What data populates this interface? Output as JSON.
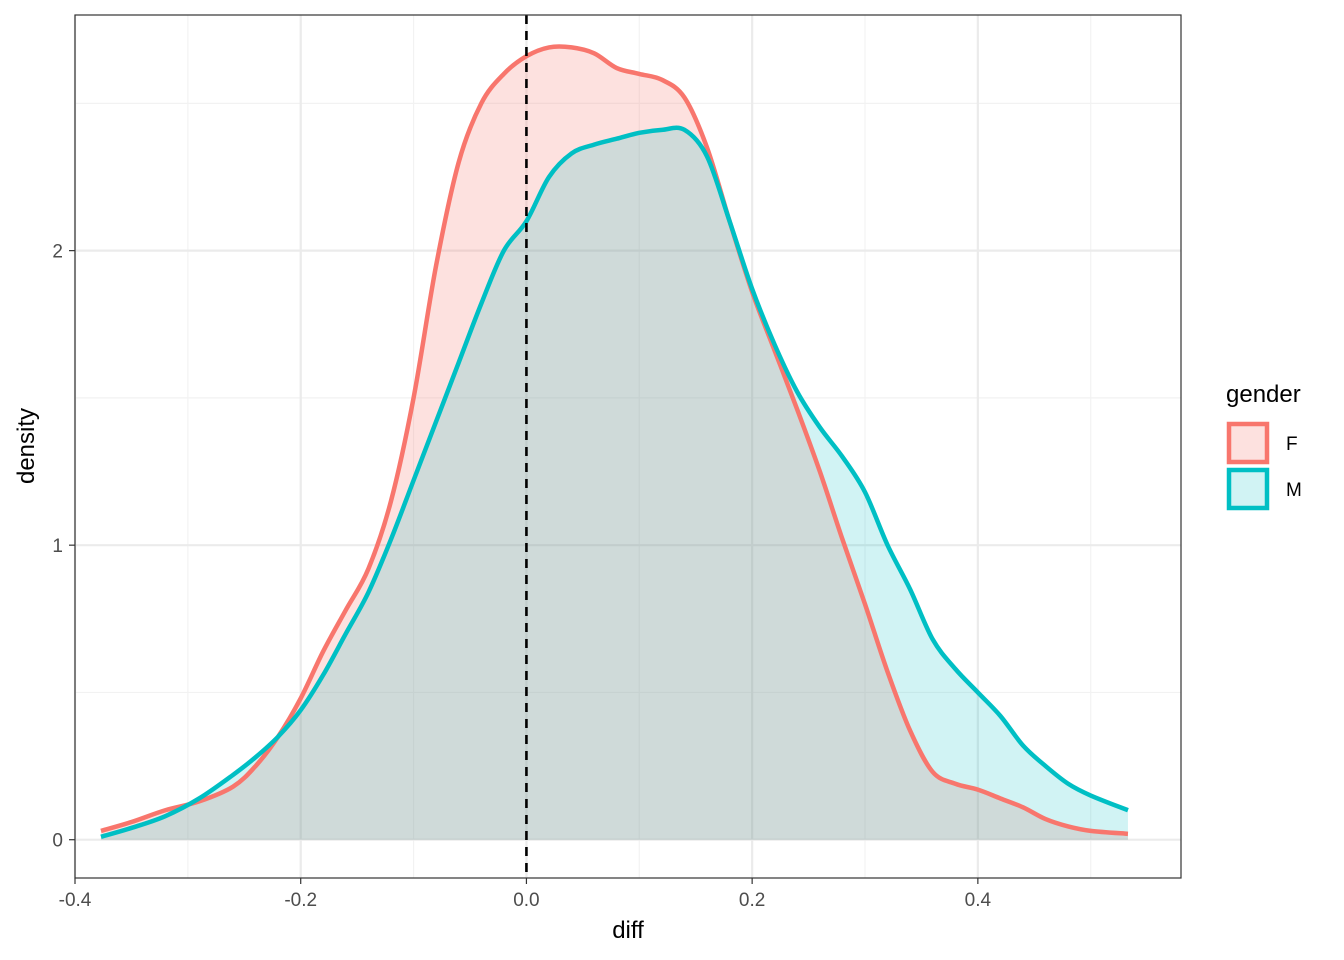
{
  "chart_data": {
    "type": "area",
    "xlabel": "diff",
    "ylabel": "density",
    "xlim": [
      -0.4,
      0.58
    ],
    "ylim": [
      -0.13,
      2.8
    ],
    "x_ticks": [
      -0.4,
      -0.2,
      0.0,
      0.2,
      0.4
    ],
    "x_tick_labels": [
      "-0.4",
      "-0.2",
      "0.0",
      "0.2",
      "0.4"
    ],
    "y_ticks": [
      0,
      1,
      2
    ],
    "y_tick_labels": [
      "0",
      "1",
      "2"
    ],
    "grid": true,
    "vline": {
      "x": 0.0,
      "style": "dashed",
      "color": "#000000"
    },
    "legend": {
      "title": "gender",
      "position": "right",
      "entries": [
        {
          "label": "F",
          "color": "#F8766D"
        },
        {
          "label": "M",
          "color": "#00BFC4"
        }
      ]
    },
    "series": [
      {
        "name": "F",
        "color": "#F8766D",
        "fill_color": "rgba(248,118,109,0.22)",
        "x": [
          -0.377,
          -0.35,
          -0.32,
          -0.29,
          -0.26,
          -0.24,
          -0.22,
          -0.2,
          -0.18,
          -0.16,
          -0.14,
          -0.12,
          -0.1,
          -0.08,
          -0.06,
          -0.04,
          -0.02,
          0.0,
          0.02,
          0.04,
          0.06,
          0.08,
          0.1,
          0.12,
          0.14,
          0.16,
          0.18,
          0.2,
          0.22,
          0.24,
          0.26,
          0.28,
          0.3,
          0.32,
          0.34,
          0.36,
          0.38,
          0.4,
          0.42,
          0.44,
          0.46,
          0.48,
          0.5,
          0.533
        ],
        "y": [
          0.03,
          0.06,
          0.1,
          0.13,
          0.18,
          0.25,
          0.35,
          0.48,
          0.64,
          0.78,
          0.92,
          1.15,
          1.5,
          1.95,
          2.3,
          2.5,
          2.6,
          2.66,
          2.69,
          2.69,
          2.67,
          2.62,
          2.6,
          2.58,
          2.52,
          2.35,
          2.1,
          1.86,
          1.66,
          1.46,
          1.25,
          1.02,
          0.8,
          0.57,
          0.37,
          0.23,
          0.19,
          0.17,
          0.14,
          0.11,
          0.07,
          0.045,
          0.03,
          0.02
        ]
      },
      {
        "name": "M",
        "color": "#00BFC4",
        "fill_color": "rgba(0,191,196,0.18)",
        "x": [
          -0.377,
          -0.35,
          -0.32,
          -0.29,
          -0.26,
          -0.24,
          -0.22,
          -0.2,
          -0.18,
          -0.16,
          -0.14,
          -0.12,
          -0.1,
          -0.08,
          -0.06,
          -0.04,
          -0.02,
          0.0,
          0.02,
          0.04,
          0.06,
          0.08,
          0.1,
          0.12,
          0.14,
          0.16,
          0.18,
          0.2,
          0.22,
          0.24,
          0.26,
          0.28,
          0.3,
          0.32,
          0.34,
          0.36,
          0.38,
          0.4,
          0.42,
          0.44,
          0.46,
          0.48,
          0.5,
          0.533
        ],
        "y": [
          0.01,
          0.04,
          0.08,
          0.14,
          0.22,
          0.28,
          0.35,
          0.44,
          0.56,
          0.7,
          0.84,
          1.02,
          1.22,
          1.42,
          1.62,
          1.82,
          2.0,
          2.1,
          2.25,
          2.33,
          2.36,
          2.38,
          2.4,
          2.41,
          2.41,
          2.32,
          2.1,
          1.87,
          1.68,
          1.52,
          1.4,
          1.3,
          1.18,
          1.0,
          0.85,
          0.68,
          0.58,
          0.5,
          0.42,
          0.32,
          0.25,
          0.19,
          0.15,
          0.1
        ]
      }
    ]
  }
}
